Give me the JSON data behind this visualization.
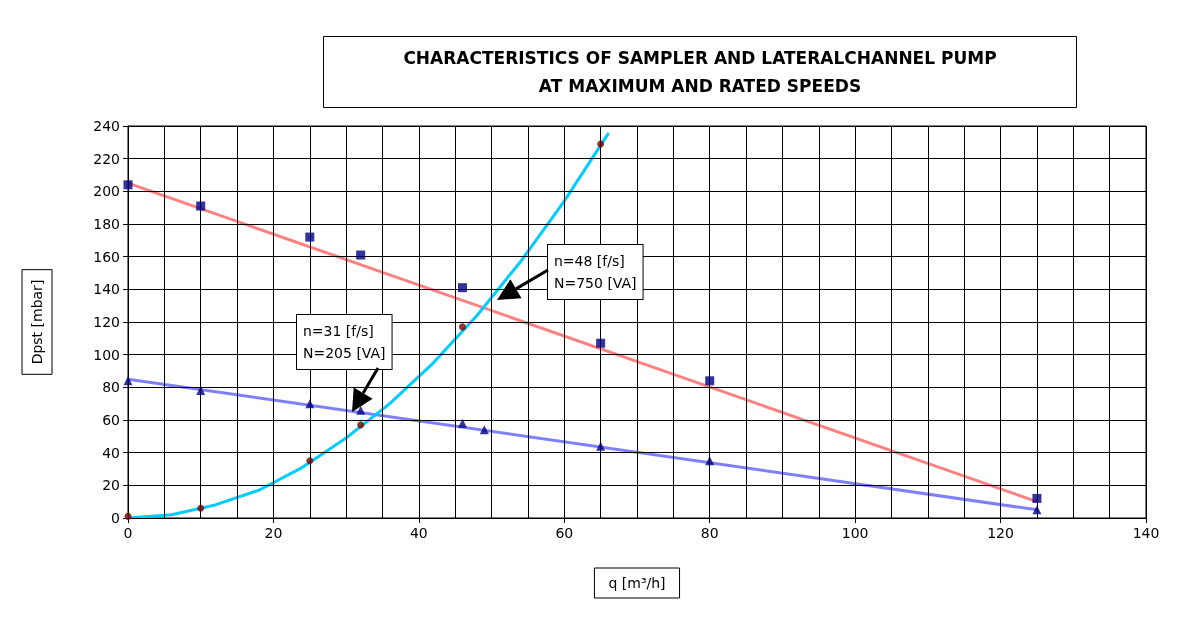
{
  "chart_data": {
    "type": "line",
    "title": "CHARACTERISTICS OF SAMPLER AND LATERALCHANNEL PUMP\nAT MAXIMUM AND RATED SPEEDS",
    "xlabel": "q [m³/h]",
    "ylabel": "Dpst [mbar]",
    "xlim": [
      0,
      140
    ],
    "ylim": [
      0,
      240
    ],
    "xticks": [
      0,
      {
        "value": 5,
        "label": null
      },
      {
        "value": 10,
        "label": null
      },
      {
        "value": 15,
        "label": null
      },
      20,
      {
        "value": 25,
        "label": null
      },
      {
        "value": 30,
        "label": null
      },
      {
        "value": 35,
        "label": null
      },
      40,
      {
        "value": 45,
        "label": null
      },
      {
        "value": 50,
        "label": null
      },
      {
        "value": 55,
        "label": null
      },
      60,
      {
        "value": 65,
        "label": null
      },
      {
        "value": 70,
        "label": null
      },
      {
        "value": 75,
        "label": null
      },
      80,
      {
        "value": 85,
        "label": null
      },
      {
        "value": 90,
        "label": null
      },
      {
        "value": 95,
        "label": null
      },
      100,
      {
        "value": 105,
        "label": null
      },
      {
        "value": 110,
        "label": null
      },
      {
        "value": 115,
        "label": null
      },
      120,
      {
        "value": 125,
        "label": null
      },
      {
        "value": 130,
        "label": null
      },
      {
        "value": 135,
        "label": null
      },
      140
    ],
    "yticks": [
      0,
      20,
      40,
      60,
      80,
      100,
      120,
      140,
      160,
      180,
      200,
      220,
      240
    ],
    "grid": true,
    "series": [
      {
        "type": "line",
        "color": "#ff8080",
        "x": [
          0,
          125
        ],
        "values": [
          205,
          10
        ],
        "marker": "none"
      },
      {
        "type": "line",
        "color": "#8080ff",
        "x": [
          0,
          125
        ],
        "values": [
          85,
          5
        ],
        "marker": "none"
      },
      {
        "type": "line",
        "color": "#00ccff",
        "x": [
          0,
          6,
          12,
          18,
          24,
          30,
          36,
          42,
          48,
          54,
          60,
          66
        ],
        "values": [
          0,
          2,
          8,
          17,
          31,
          49,
          70,
          95,
          124,
          157,
          194,
          235
        ],
        "marker": "none"
      },
      {
        "type": "scatter",
        "color": "#000080",
        "x": [
          0,
          10,
          25,
          32,
          46,
          65,
          80,
          125
        ],
        "values": [
          204,
          191,
          172,
          161,
          141,
          107,
          84,
          12
        ],
        "marker": "square"
      },
      {
        "type": "scatter",
        "color": "#000080",
        "x": [
          0,
          10,
          25,
          32,
          46,
          49,
          65,
          80,
          125
        ],
        "values": [
          84,
          78,
          70,
          66,
          58,
          54,
          44,
          35,
          5
        ],
        "marker": "triangle"
      },
      {
        "type": "scatter",
        "color": "#800000",
        "x": [
          0,
          10,
          25,
          32,
          46,
          65
        ],
        "values": [
          1,
          6,
          35,
          57,
          117,
          229
        ],
        "marker": "circle"
      }
    ],
    "annotations": [
      "n=48 [f/s]\nN=750 [VA]",
      "n=31 [f/s]\nN=205 [VA]"
    ]
  }
}
